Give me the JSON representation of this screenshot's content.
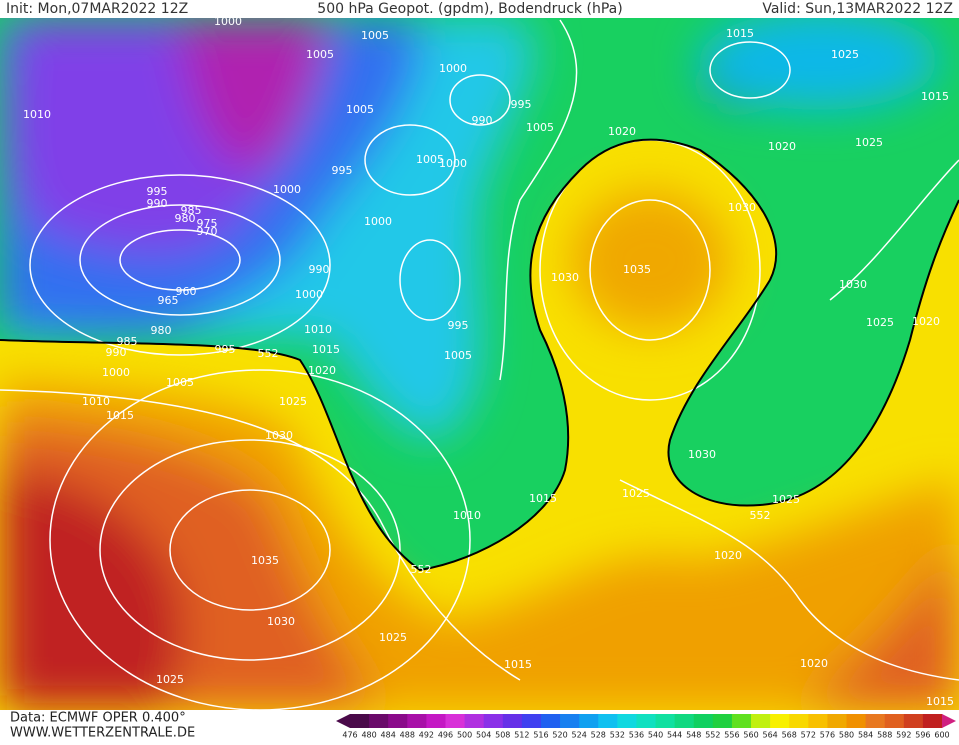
{
  "header": {
    "init": "Init: Mon,07MAR2022 12Z",
    "title": "500 hPa Geopot. (gpdm), Bodendruck (hPa)",
    "valid": "Valid: Sun,13MAR2022 12Z"
  },
  "isobar_labels": [
    "1000",
    "1005",
    "1005",
    "1015",
    "1025",
    "1015",
    "1010",
    "1000",
    "995",
    "990",
    "1005",
    "1005",
    "1020",
    "1020",
    "1025",
    "1005",
    "1000",
    "995",
    "1000",
    "995",
    "990",
    "985",
    "980",
    "975",
    "970",
    "1030",
    "1000",
    "990",
    "1035",
    "1030",
    "1030",
    "960",
    "1000",
    "965",
    "995",
    "1025",
    "1020",
    "980",
    "1010",
    "985",
    "990",
    "995",
    "552",
    "1015",
    "1005",
    "1020",
    "1000",
    "1005",
    "1010",
    "1025",
    "1015",
    "1030",
    "1030",
    "1015",
    "1025",
    "1025",
    "552",
    "1010",
    "1035",
    "1020",
    "552",
    "1030",
    "1025",
    "1015",
    "1020",
    "1025",
    "1015"
  ],
  "footer": {
    "source": "Data: ECMWF OPER 0.400°",
    "site": "WWW.WETTERZENTRALE.DE"
  },
  "colorbar": {
    "ticks": [
      476,
      480,
      484,
      488,
      492,
      496,
      500,
      504,
      508,
      512,
      516,
      520,
      524,
      528,
      532,
      536,
      540,
      544,
      548,
      552,
      556,
      560,
      564,
      568,
      572,
      576,
      580,
      584,
      588,
      592,
      596,
      600
    ],
    "colors": [
      "#4a0a4a",
      "#6a0a6a",
      "#8a0a8a",
      "#a810a8",
      "#c418c4",
      "#d830d8",
      "#b030e0",
      "#8a30e8",
      "#6630e8",
      "#4040f0",
      "#2060f0",
      "#1880f0",
      "#10a0f0",
      "#10c0f0",
      "#10d8e0",
      "#10e0c0",
      "#10e0a0",
      "#10d880",
      "#10d060",
      "#20d040",
      "#60e020",
      "#c0f010",
      "#f8f000",
      "#f8d800",
      "#f8c000",
      "#f0a800",
      "#f09000",
      "#e87820",
      "#e06020",
      "#d04020",
      "#c02020"
    ]
  }
}
